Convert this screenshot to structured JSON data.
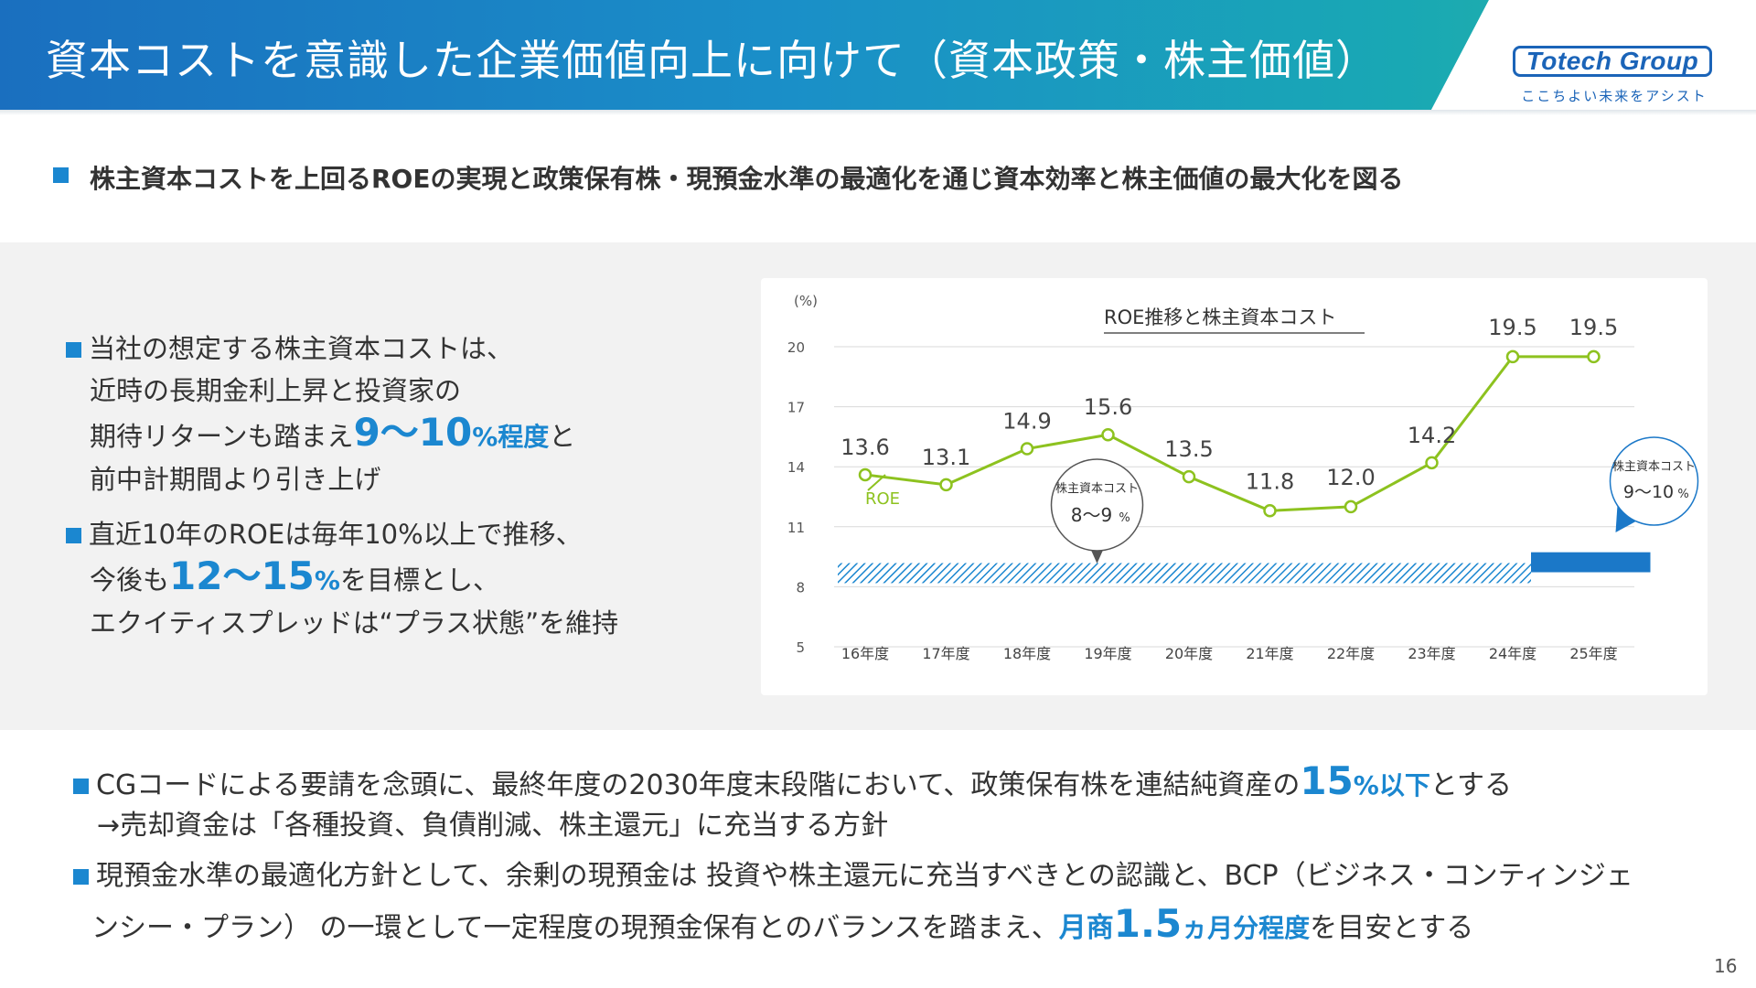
{
  "header": {
    "title": "資本コストを意識した企業価値向上に向けて（資本政策・株主価値）",
    "logo_text": "Totech Group",
    "logo_tagline": "ここちよい未来をアシスト"
  },
  "lead": {
    "text": "株主資本コストを上回るROEの実現と政策保有株・現預金水準の最適化を通じ資本効率と株主価値の最大化を図る"
  },
  "left_points": [
    {
      "line1": "当社の想定する株主資本コストは、",
      "line2": "近時の長期金利上昇と投資家の",
      "line3_pre": "期待リターンも踏まえ",
      "line3_em_num": "9～10",
      "line3_em_unit": "%程度",
      "line3_post": "と",
      "line4": "前中計期間より引き上げ"
    },
    {
      "line1": "直近10年のROEは毎年10%以上で推移、",
      "line2_pre": "今後も",
      "line2_em_num": "12～15",
      "line2_em_unit": "%",
      "line2_post": "を目標とし、",
      "line3": "エクイティスプレッドは“プラス状態”を維持"
    }
  ],
  "chart_data": {
    "type": "line",
    "title": "ROE推移と株主資本コスト",
    "y_unit": "(%)",
    "ylim": [
      5,
      20
    ],
    "yticks": [
      5,
      8,
      11,
      14,
      17,
      20
    ],
    "grid": true,
    "categories": [
      "16年度",
      "17年度",
      "18年度",
      "19年度",
      "20年度",
      "21年度",
      "22年度",
      "23年度",
      "24年度",
      "25年度"
    ],
    "series": [
      {
        "name": "ROE",
        "values": [
          13.6,
          13.1,
          14.9,
          15.6,
          13.5,
          11.8,
          12.0,
          14.2,
          19.5,
          19.5
        ],
        "color": "#8dc21f"
      }
    ],
    "data_labels": [
      "13.6",
      "13.1",
      "14.9",
      "15.6",
      "13.5",
      "11.8",
      "12.0",
      "14.2",
      "19.5",
      "19.5"
    ],
    "cost_bands": [
      {
        "from_category": "16年度",
        "to_category": "24年度",
        "range": [
          8,
          9
        ],
        "style": "hatched",
        "color": "#1b87d0",
        "callout_title": "株主資本コスト",
        "callout_value": "8～9",
        "callout_unit": "%"
      },
      {
        "from_category": "24年度",
        "to_category": "25年度",
        "range": [
          9,
          10
        ],
        "style": "solid",
        "color": "#1b78c8",
        "callout_title": "株主資本コスト",
        "callout_value": "9～10",
        "callout_unit": "%"
      }
    ]
  },
  "bottom_points": [
    {
      "line1_pre": "CGコードによる要請を念頭に、最終年度の2030年度末段階において、政策保有株を連結純資産の",
      "line1_em_num": "15",
      "line1_em_unit": "%以下",
      "line1_post": "とする",
      "line2": "→売却資金は「各種投資、負債削減、株主還元」に充当する方針"
    },
    {
      "line1": "現預金水準の最適化方針として、余剰の現預金は 投資や株主還元に充当すべきとの認識と、BCP（ビジネス・コンティンジェ",
      "line2_pre": "ンシー・プラン） の一環として一定程度の現預金保有とのバランスを踏まえ、",
      "line2_em_a": "月商",
      "line2_em_num": "1.5",
      "line2_em_unit": "ヵ月分程度",
      "line2_post": "を目安とする"
    }
  ],
  "page_number": "16",
  "colors": {
    "accent": "#1b87d0",
    "roe_line": "#8dc21f",
    "header_start": "#1a6fbf",
    "header_end": "#2ab6a0"
  }
}
